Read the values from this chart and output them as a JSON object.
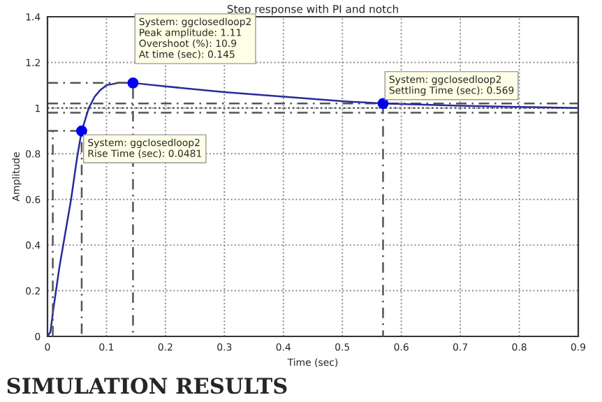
{
  "chart_data": {
    "type": "line",
    "title": "Step response with PI and notch",
    "xlabel": "Time (sec)",
    "ylabel": "Amplitude",
    "xlim": [
      0,
      0.9
    ],
    "xticks": [
      0,
      0.1,
      0.2,
      0.3,
      0.4,
      0.5,
      0.6,
      0.7,
      0.8,
      0.9
    ],
    "ylim": [
      0,
      1.4
    ],
    "yticks": [
      0,
      0.2,
      0.4,
      0.6,
      0.8,
      1,
      1.2,
      1.4
    ],
    "grid": true,
    "series": [
      {
        "color": "#2a2a9a",
        "line_style": "solid",
        "marker": "none",
        "x": [
          0,
          0.005,
          0.01,
          0.02,
          0.03,
          0.04,
          0.05,
          0.058,
          0.07,
          0.08,
          0.09,
          0.1,
          0.12,
          0.145,
          0.2,
          0.3,
          0.4,
          0.5,
          0.569,
          0.7,
          0.8,
          0.9
        ],
        "values": [
          0,
          0.02,
          0.12,
          0.3,
          0.45,
          0.6,
          0.78,
          0.9,
          1.0,
          1.05,
          1.08,
          1.1,
          1.11,
          1.11,
          1.095,
          1.07,
          1.05,
          1.03,
          1.02,
          1.01,
          1.005,
          1.0
        ]
      },
      {
        "type": "scatter",
        "color": "#0000ee",
        "marker": "circle",
        "x": [
          0.058,
          0.145,
          0.569
        ],
        "values": [
          0.9,
          1.11,
          1.02
        ]
      },
      {
        "type": "line",
        "color": "#555555",
        "line_style": "dashed",
        "marker": "none",
        "x": [
          0.009,
          0.009
        ],
        "values": [
          0,
          0.9
        ]
      },
      {
        "type": "line",
        "color": "#555555",
        "line_style": "dashed",
        "marker": "none",
        "x": [
          0,
          0.058,
          0.058
        ],
        "values": [
          0.9,
          0.9,
          0
        ]
      },
      {
        "type": "line",
        "color": "#555555",
        "line_style": "dashed",
        "marker": "none",
        "x": [
          0,
          0.145,
          0.145
        ],
        "values": [
          1.11,
          1.11,
          0
        ]
      },
      {
        "type": "line",
        "color": "#555555",
        "line_style": "dashed",
        "marker": "none",
        "x": [
          0.569,
          0.569
        ],
        "values": [
          1.02,
          0
        ]
      }
    ],
    "ref_lines": [
      {
        "axis": "y",
        "value": 1.02,
        "color": "#555555",
        "line_style": "dashed"
      },
      {
        "axis": "y",
        "value": 0.98,
        "color": "#555555",
        "line_style": "dashed"
      },
      {
        "axis": "y",
        "value": 1,
        "color": "#555555",
        "line_style": "dotted"
      }
    ],
    "annotations": [
      {
        "text": "System: ggclosedloop2\nRise Time (sec): 0.0481",
        "x": 0.058,
        "y": 0.9
      },
      {
        "text": "System: ggclosedloop2\nPeak amplitude: 1.11\nOvershoot (%): 10.9\nAt time (sec): 0.145",
        "x": 0.145,
        "y": 1.11
      },
      {
        "text": "System: ggclosedloop2\nSettling Time (sec): 0.569",
        "x": 0.569,
        "y": 1.02
      },
      "SIMULATION RESULTS"
    ]
  }
}
